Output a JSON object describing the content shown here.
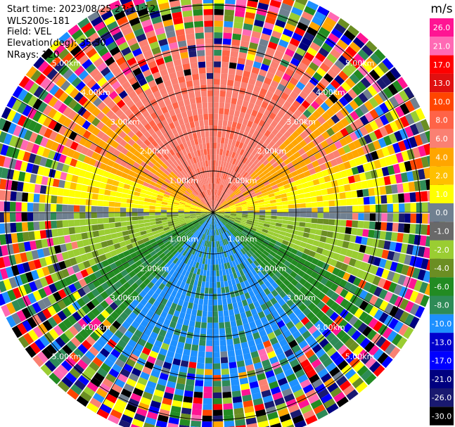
{
  "header": {
    "start_time": "Start time: 2023/08/25 23:11:12",
    "instrument": "WLS200s-181",
    "field": "Field: VEL",
    "elevation": "Elevation(deg): 35.30",
    "nrays": "NRays: 120"
  },
  "chart_data": {
    "type": "ppi",
    "field": "VEL",
    "units": "m/s",
    "nrays": 120,
    "elevation_deg": 35.3,
    "range_rings_km": [
      1.0,
      2.0,
      3.0,
      4.0,
      5.0
    ],
    "range_ring_labels": [
      "1.00km",
      "2.00km",
      "3.00km",
      "4.00km",
      "5.00km"
    ],
    "max_range_km": 5.6,
    "colorbar": {
      "label": "m/s",
      "ticks": [
        "26.0",
        "21.0",
        "17.0",
        "13.0",
        "10.0",
        "8.0",
        "6.0",
        "4.0",
        "2.0",
        "1.0",
        "0.0",
        "-1.0",
        "-2.0",
        "-4.0",
        "-6.0",
        "-8.0",
        "-10.0",
        "-13.0",
        "-17.0",
        "-21.0",
        "-26.0",
        "-30.0"
      ],
      "colors": [
        "#ff1493",
        "#ff69b4",
        "#ff0000",
        "#e01010",
        "#ff4500",
        "#ff6347",
        "#fa8072",
        "#ffa500",
        "#ffc000",
        "#ffff00",
        "#708090",
        "#696969",
        "#9acd32",
        "#6b8e23",
        "#228b22",
        "#2e8b57",
        "#1e90ff",
        "#0000cd",
        "#0000ff",
        "#000080",
        "#191970",
        "#000000"
      ]
    }
  }
}
